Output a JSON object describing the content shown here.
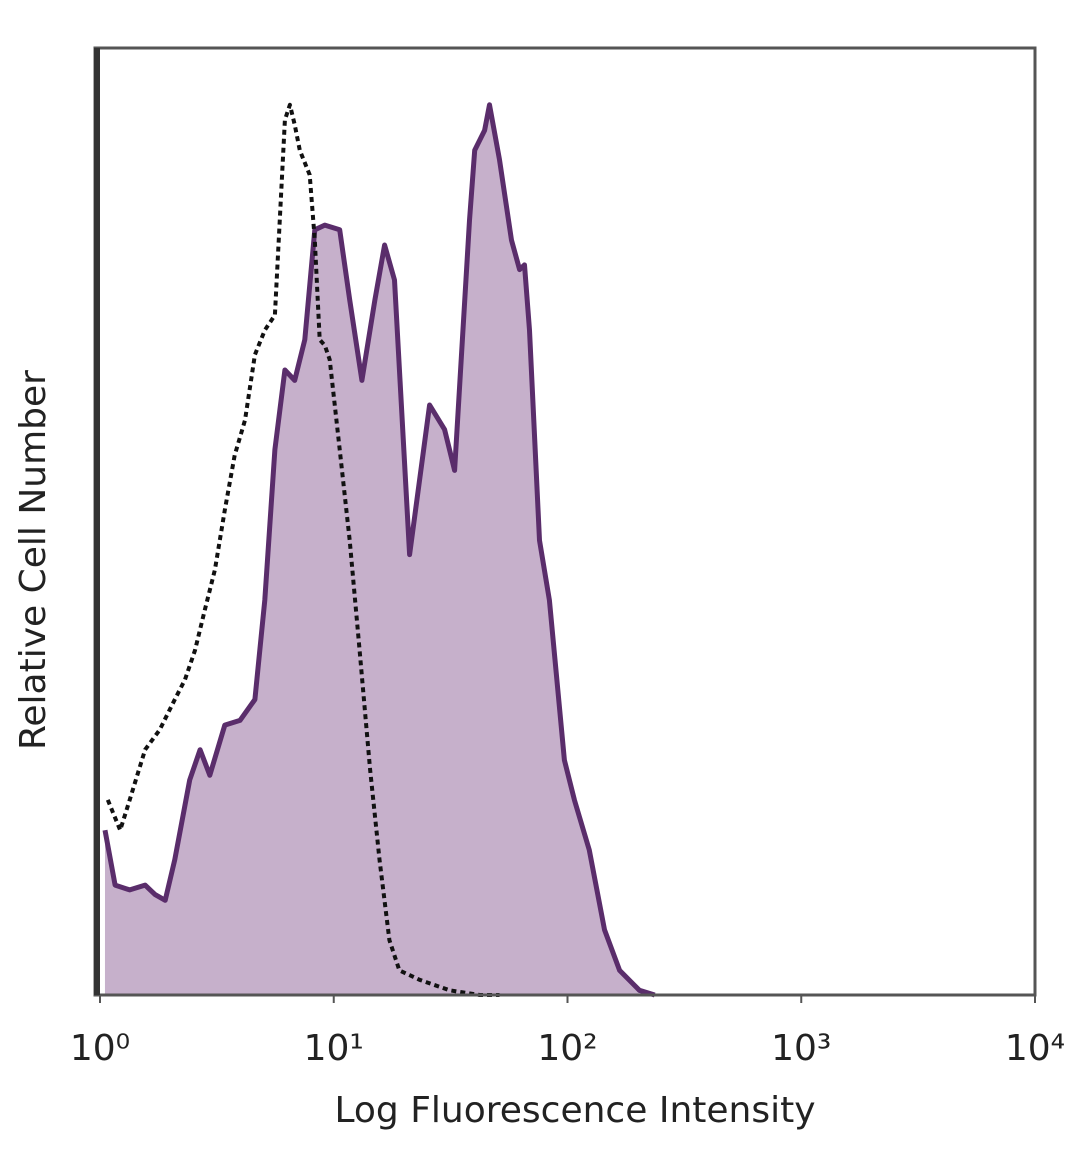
{
  "chart_data": {
    "type": "line",
    "xscale": "log",
    "xlabel": "Log Fluorescence Intensity",
    "ylabel": "Relative Cell Number",
    "xlim": [
      1,
      10000
    ],
    "ylim": [
      0,
      100
    ],
    "xticks": [
      {
        "value": 1,
        "label": "10⁰"
      },
      {
        "value": 10,
        "label": "10¹"
      },
      {
        "value": 100,
        "label": "10²"
      },
      {
        "value": 1000,
        "label": "10³"
      },
      {
        "value": 10000,
        "label": "10⁴"
      }
    ],
    "series": [
      {
        "color": "#5a2d6b",
        "fill": "#c6b0cb",
        "style": "solid",
        "x": [
          1.05,
          1.16,
          1.34,
          1.56,
          1.72,
          1.9,
          2.09,
          2.42,
          2.68,
          2.95,
          3.42,
          3.97,
          4.6,
          5.07,
          5.6,
          6.18,
          6.81,
          7.52,
          8.3,
          9.16,
          10.6,
          11.7,
          13.2,
          15.0,
          16.5,
          18.2,
          21.1,
          23.3,
          25.7,
          29.8,
          32.9,
          38.1,
          40.1,
          44.2,
          46.4,
          51.2,
          57.6,
          62.4,
          65.5,
          68.8,
          75.9,
          83.7,
          97.0,
          107,
          124,
          144,
          167,
          203,
          236
        ],
        "values": [
          17.4,
          11.6,
          11.1,
          11.6,
          10.6,
          10.0,
          14.3,
          22.7,
          25.9,
          23.2,
          28.5,
          29.0,
          31.2,
          41.7,
          57.6,
          66.0,
          64.9,
          69.2,
          80.8,
          81.3,
          80.8,
          73.4,
          64.9,
          73.4,
          79.2,
          75.5,
          46.5,
          54.4,
          62.3,
          59.7,
          55.4,
          81.8,
          89.2,
          91.3,
          94.0,
          88.2,
          79.7,
          76.6,
          77.1,
          70.2,
          48.0,
          41.7,
          24.8,
          20.6,
          15.3,
          6.9,
          2.6,
          0.5,
          0
        ]
      },
      {
        "color": "#111111",
        "style": "dashed",
        "x": [
          1.08,
          1.22,
          1.34,
          1.56,
          1.8,
          2.09,
          2.31,
          2.55,
          2.81,
          3.1,
          3.42,
          3.77,
          4.17,
          4.6,
          5.07,
          5.6,
          6.18,
          6.49,
          6.81,
          7.16,
          7.89,
          8.3,
          8.71,
          9.16,
          9.61,
          10.6,
          11.7,
          12.9,
          14.3,
          15.7,
          17.3,
          19.1,
          23.3,
          31.3,
          42.1,
          51.2
        ],
        "values": [
          20.6,
          17.4,
          20.6,
          25.9,
          28.0,
          31.2,
          33.3,
          36.4,
          40.7,
          44.9,
          51.2,
          57.0,
          60.7,
          67.6,
          70.2,
          71.8,
          92.4,
          94.0,
          91.9,
          89.2,
          86.6,
          79.7,
          69.2,
          68.6,
          67.1,
          57.6,
          48.0,
          36.4,
          23.8,
          14.3,
          5.8,
          2.6,
          1.6,
          0.5,
          0,
          0
        ]
      }
    ]
  }
}
